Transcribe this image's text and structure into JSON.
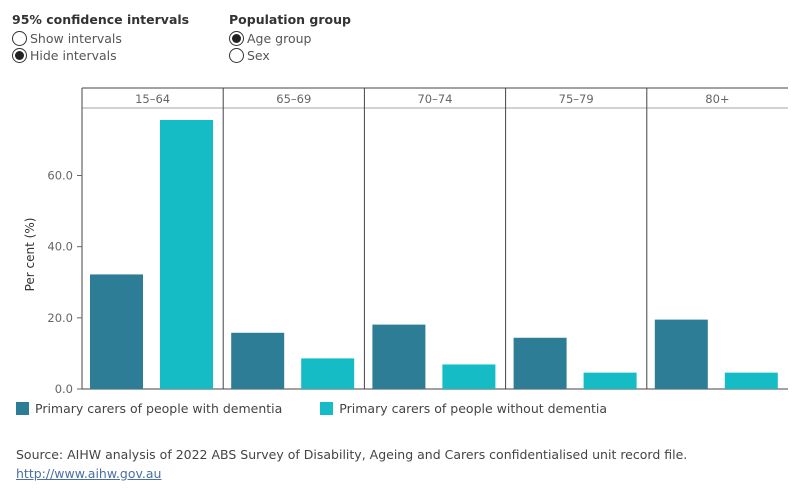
{
  "controls": {
    "intervals": {
      "title": "95% confidence intervals",
      "options": [
        {
          "label": "Show intervals",
          "selected": false
        },
        {
          "label": "Hide intervals",
          "selected": true
        }
      ]
    },
    "population": {
      "title": "Population group",
      "options": [
        {
          "label": "Age group",
          "selected": true
        },
        {
          "label": "Sex",
          "selected": false
        }
      ]
    }
  },
  "chart_data": {
    "type": "bar",
    "title": "",
    "xlabel": "",
    "ylabel": "Per cent (%)",
    "ylim": [
      0,
      75.6
    ],
    "yticks": [
      0,
      20,
      40,
      60
    ],
    "ytick_labels": [
      "0.0",
      "20.0",
      "40.0",
      "60.0"
    ],
    "grid": false,
    "legend_position": "bottom-left",
    "categories": [
      "15–64",
      "65–69",
      "70–74",
      "75–79",
      "80+"
    ],
    "series": [
      {
        "name": "Primary carers of people with dementia",
        "color": "#2e7d96",
        "values": [
          32.2,
          15.8,
          18.1,
          14.4,
          19.5
        ]
      },
      {
        "name": "Primary carers of people without dementia",
        "color": "#15bcc6",
        "values": [
          75.6,
          8.6,
          6.9,
          4.6,
          4.6
        ]
      }
    ]
  },
  "source": {
    "text": "Source: AIHW analysis of 2022 ABS Survey of Disability, Ageing and Carers confidentialised unit record file.",
    "link": "http://www.aihw.gov.au"
  }
}
